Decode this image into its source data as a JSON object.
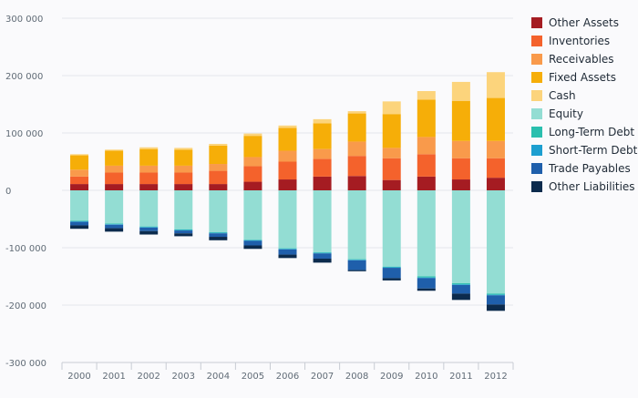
{
  "chart_data": {
    "type": "bar",
    "stacked": true,
    "categories": [
      "2000",
      "2001",
      "2002",
      "2003",
      "2004",
      "2005",
      "2006",
      "2007",
      "2008",
      "2009",
      "2010",
      "2011",
      "2012"
    ],
    "ylim": [
      -300000,
      300000
    ],
    "yticks": [
      300000,
      200000,
      100000,
      0,
      -100000,
      -200000,
      -300000
    ],
    "ytick_labels": [
      "300 000",
      "200 000",
      "100 000",
      "0",
      "-100 000",
      "-200 000",
      "-300 000"
    ],
    "grid": true,
    "legend_position": "right",
    "series": [
      {
        "name": "Other Assets",
        "color": "#a51c22",
        "values": [
          11000,
          11000,
          11000,
          11000,
          11000,
          15000,
          19000,
          24000,
          25000,
          18000,
          24000,
          19000,
          22000
        ]
      },
      {
        "name": "Inventories",
        "color": "#f4622c",
        "values": [
          13000,
          20000,
          20000,
          20000,
          23000,
          27000,
          31000,
          31000,
          35000,
          38000,
          39000,
          37000,
          34000
        ]
      },
      {
        "name": "Receivables",
        "color": "#f99a4b",
        "values": [
          12000,
          12000,
          12000,
          12000,
          12000,
          16000,
          19000,
          17000,
          25000,
          18000,
          30000,
          30000,
          30000
        ]
      },
      {
        "name": "Fixed Assets",
        "color": "#f6ae08",
        "values": [
          25000,
          26000,
          29000,
          28000,
          32000,
          37000,
          40000,
          45000,
          49000,
          59000,
          65000,
          70000,
          75000
        ]
      },
      {
        "name": "Cash",
        "color": "#fcd47c",
        "values": [
          2000,
          2000,
          3000,
          3000,
          3000,
          4000,
          4000,
          7000,
          4000,
          22000,
          15000,
          33000,
          45000
        ]
      },
      {
        "name": "Equity",
        "color": "#93ddd3",
        "values": [
          -53000,
          -58000,
          -63000,
          -68000,
          -73000,
          -86000,
          -101000,
          -108000,
          -120000,
          -133000,
          -150000,
          -162000,
          -180000
        ]
      },
      {
        "name": "Long-Term Debt",
        "color": "#2abfae",
        "values": [
          -1000,
          -1000,
          -1000,
          -1000,
          -1000,
          -1000,
          -1000,
          -1000,
          -1000,
          -1000,
          -2000,
          -2000,
          -2000
        ]
      },
      {
        "name": "Short-Term Debt",
        "color": "#1d9fd0",
        "values": [
          -1000,
          -1000,
          -1000,
          -1000,
          -1000,
          -1000,
          -1000,
          -1000,
          -1000,
          -1000,
          -1000,
          -1000,
          -1000
        ]
      },
      {
        "name": "Trade Payables",
        "color": "#1f5fab",
        "values": [
          -6000,
          -6000,
          -6000,
          -5000,
          -6000,
          -8000,
          -9000,
          -9000,
          -17000,
          -18000,
          -18000,
          -15000,
          -16000
        ]
      },
      {
        "name": "Other Liabilities",
        "color": "#0c2b4d",
        "values": [
          -6000,
          -6000,
          -6000,
          -5000,
          -6000,
          -6000,
          -6000,
          -7000,
          -2000,
          -4000,
          -4000,
          -11000,
          -11000
        ]
      }
    ]
  }
}
